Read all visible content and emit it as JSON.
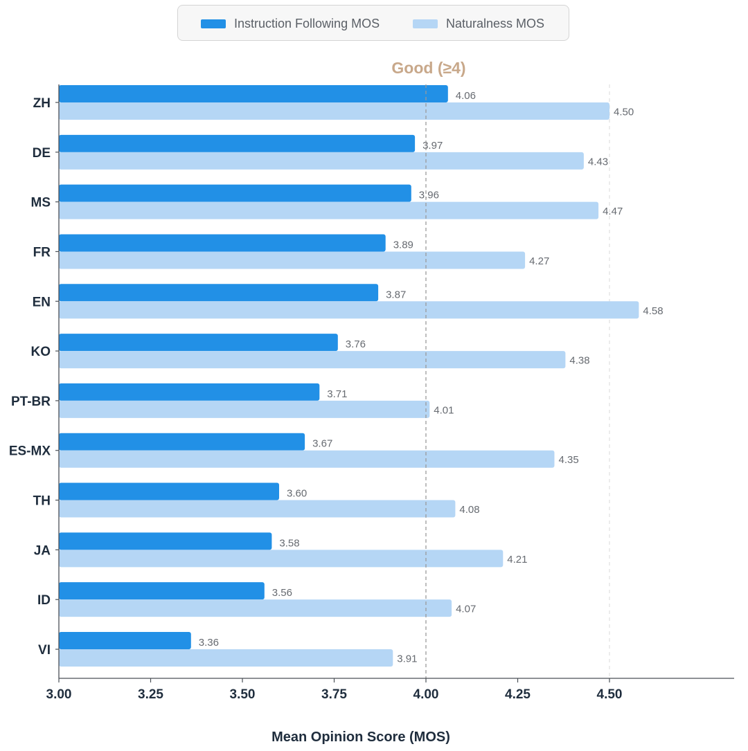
{
  "colors": {
    "instruction": "#2290e6",
    "naturalness": "#b5d6f5",
    "reference_line": "#9a9a9a",
    "reference_label": "#c8a88a",
    "axis": "#4a4f56",
    "text": "#1f2d3d",
    "value_text": "#666a70"
  },
  "legend": {
    "items": [
      {
        "label": "Instruction Following MOS",
        "color": "#2290e6"
      },
      {
        "label": "Naturalness MOS",
        "color": "#b5d6f5"
      }
    ],
    "placement": "top-center"
  },
  "chart_data": {
    "type": "bar",
    "orientation": "horizontal",
    "categories": [
      "ZH",
      "DE",
      "MS",
      "FR",
      "EN",
      "KO",
      "PT-BR",
      "ES-MX",
      "TH",
      "JA",
      "ID",
      "VI"
    ],
    "series": [
      {
        "name": "Instruction Following MOS",
        "values": [
          4.06,
          3.97,
          3.96,
          3.89,
          3.87,
          3.76,
          3.71,
          3.67,
          3.6,
          3.58,
          3.56,
          3.36
        ]
      },
      {
        "name": "Naturalness MOS",
        "values": [
          4.5,
          4.43,
          4.47,
          4.27,
          4.58,
          4.38,
          4.01,
          4.35,
          4.08,
          4.21,
          4.07,
          3.91
        ]
      }
    ],
    "value_labels": {
      "Instruction Following MOS": [
        "4.06",
        "3.97",
        "3.96",
        "3.89",
        "3.87",
        "3.76",
        "3.71",
        "3.67",
        "3.60",
        "3.58",
        "3.56",
        "3.36"
      ],
      "Naturalness MOS": [
        "4.50",
        "4.43",
        "4.47",
        "4.27",
        "4.58",
        "4.38",
        "4.01",
        "4.35",
        "4.08",
        "4.21",
        "4.07",
        "3.91"
      ]
    },
    "xticks": [
      3.0,
      3.25,
      3.5,
      3.75,
      4.0,
      4.25,
      4.5
    ],
    "xtick_labels": [
      "3.00",
      "3.25",
      "3.50",
      "3.75",
      "4.00",
      "4.25",
      "4.50"
    ],
    "xlim": [
      3.0,
      4.85
    ],
    "xlabel": "Mean Opinion Score (MOS)",
    "ylabel": "",
    "title": "",
    "reference_line": {
      "value": 4.0,
      "label": "Good (≥4)",
      "style": "dashed"
    },
    "grid": {
      "x": "dashed at 4.50",
      "y": false
    }
  }
}
